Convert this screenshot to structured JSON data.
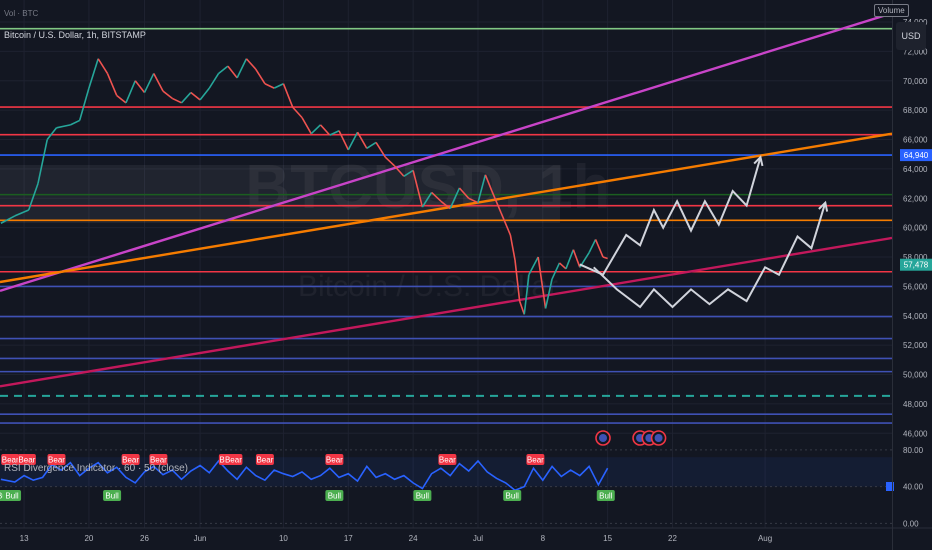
{
  "header": {
    "top_label": "Vol · BTC",
    "symbol": "Bitcoin / U.S. Dollar, 1h, BITSTAMP",
    "volume_button": "Volume",
    "currency_button": "USD"
  },
  "watermark": {
    "symbol": "BTCUSD, 1h",
    "name": "Bitcoin / U.S. Dollar"
  },
  "chart_data": [
    {
      "type": "line",
      "role": "price",
      "y_ticks": [
        74000,
        72000,
        70000,
        68000,
        66000,
        64000,
        62000,
        60000,
        58000,
        56000,
        54000,
        52000,
        50000,
        48000,
        46000
      ],
      "ylim": [
        45000,
        75500
      ],
      "x_ticks": [
        {
          "label": "13",
          "day": 13
        },
        {
          "label": "20",
          "day": 20
        },
        {
          "label": "26",
          "day": 26
        },
        {
          "label": "Jun",
          "day": 32
        },
        {
          "label": "10",
          "day": 41
        },
        {
          "label": "17",
          "day": 48
        },
        {
          "label": "24",
          "day": 55
        },
        {
          "label": "Jul",
          "day": 62
        },
        {
          "label": "8",
          "day": 69
        },
        {
          "label": "15",
          "day": 76
        },
        {
          "label": "22",
          "day": 83
        },
        {
          "label": "Aug",
          "day": 93
        }
      ],
      "xlim": [
        10.4,
        106.7
      ],
      "price_series": [
        [
          10.5,
          60300
        ],
        [
          12,
          60800
        ],
        [
          13.5,
          61200
        ],
        [
          14.5,
          63000
        ],
        [
          15.5,
          66000
        ],
        [
          16.5,
          66800
        ],
        [
          18,
          67000
        ],
        [
          19,
          67300
        ],
        [
          20,
          69500
        ],
        [
          21,
          71500
        ],
        [
          22,
          70500
        ],
        [
          23,
          69000
        ],
        [
          24,
          68500
        ],
        [
          25,
          70000
        ],
        [
          26,
          69200
        ],
        [
          27,
          70500
        ],
        [
          28,
          69300
        ],
        [
          29,
          68800
        ],
        [
          30,
          68500
        ],
        [
          31,
          69200
        ],
        [
          32,
          68700
        ],
        [
          33,
          69500
        ],
        [
          34,
          70500
        ],
        [
          35,
          71000
        ],
        [
          36,
          70200
        ],
        [
          37,
          71500
        ],
        [
          38,
          70800
        ],
        [
          39,
          69800
        ],
        [
          40,
          69500
        ],
        [
          41,
          69800
        ],
        [
          42,
          68200
        ],
        [
          43,
          67500
        ],
        [
          44,
          66400
        ],
        [
          45,
          67000
        ],
        [
          46,
          66300
        ],
        [
          47,
          66600
        ],
        [
          48,
          65300
        ],
        [
          49,
          66500
        ],
        [
          50,
          65400
        ],
        [
          51,
          65800
        ],
        [
          52,
          64800
        ],
        [
          53,
          64200
        ],
        [
          54,
          63500
        ],
        [
          55,
          63900
        ],
        [
          56,
          61400
        ],
        [
          57,
          62400
        ],
        [
          58,
          61800
        ],
        [
          59,
          61300
        ],
        [
          60,
          62700
        ],
        [
          61,
          62000
        ],
        [
          62,
          61700
        ],
        [
          62.8,
          63600
        ],
        [
          63.5,
          62500
        ],
        [
          64.5,
          61000
        ],
        [
          65.5,
          59500
        ],
        [
          66,
          57800
        ],
        [
          66.5,
          55000
        ],
        [
          67,
          54100
        ],
        [
          67.5,
          56800
        ],
        [
          68.5,
          58000
        ],
        [
          69.3,
          54500
        ],
        [
          70,
          56500
        ],
        [
          70.8,
          57600
        ],
        [
          71.5,
          57200
        ],
        [
          72.3,
          58500
        ],
        [
          73,
          57300
        ],
        [
          74,
          58300
        ],
        [
          74.7,
          59200
        ],
        [
          75.5,
          58000
        ],
        [
          76,
          57900
        ]
      ],
      "current_price_label": "57,478",
      "current_price": 57478,
      "level_label": "64,940",
      "level": 64940,
      "horizontal_levels": [
        {
          "price": 73550,
          "color": "#81c784"
        },
        {
          "price": 68210,
          "color": "#f23645"
        },
        {
          "price": 66330,
          "color": "#f23645"
        },
        {
          "price": 64940,
          "color": "#2962ff"
        },
        {
          "price": 62250,
          "color": "#1b5e20"
        },
        {
          "price": 61500,
          "color": "#f23645"
        },
        {
          "price": 60500,
          "color": "#f57c00"
        },
        {
          "price": 57000,
          "color": "#f23645"
        },
        {
          "price": 56000,
          "color": "#3f51b5"
        },
        {
          "price": 53950,
          "color": "#3f51b5"
        },
        {
          "price": 52450,
          "color": "#3f51b5"
        },
        {
          "price": 51100,
          "color": "#3f51b5"
        },
        {
          "price": 50200,
          "color": "#3f51b5"
        },
        {
          "price": 48550,
          "color": "#26a69a",
          "dashed": true
        },
        {
          "price": 47300,
          "color": "#3f51b5"
        },
        {
          "price": 46700,
          "color": "#3f51b5"
        }
      ],
      "trend_lines": [
        {
          "from": [
            10.4,
            55700
          ],
          "to": [
            106.7,
            74600
          ],
          "color": "#c844c8"
        },
        {
          "from": [
            10.4,
            56300
          ],
          "to": [
            106.7,
            66400
          ],
          "color": "#f57c00"
        },
        {
          "from": [
            10.4,
            49200
          ],
          "to": [
            106.7,
            59300
          ],
          "color": "#c2185b"
        }
      ],
      "projection_up": [
        [
          73,
          57500
        ],
        [
          75.5,
          56800
        ],
        [
          78,
          59500
        ],
        [
          79.5,
          58800
        ],
        [
          81,
          61200
        ],
        [
          82,
          60000
        ],
        [
          83.5,
          61800
        ],
        [
          85,
          59800
        ],
        [
          86.5,
          61800
        ],
        [
          88,
          60200
        ],
        [
          89.5,
          62500
        ],
        [
          91,
          61500
        ],
        [
          92.5,
          64800
        ]
      ],
      "projection_down": [
        [
          74.5,
          57300
        ],
        [
          77,
          55800
        ],
        [
          79.5,
          54600
        ],
        [
          81,
          55800
        ],
        [
          83,
          54600
        ],
        [
          85,
          55800
        ],
        [
          87,
          54800
        ],
        [
          89,
          55800
        ],
        [
          91,
          55000
        ],
        [
          93,
          57300
        ],
        [
          94.5,
          56800
        ],
        [
          96.5,
          59400
        ],
        [
          98,
          58600
        ],
        [
          99.5,
          61700
        ]
      ]
    },
    {
      "type": "line",
      "role": "rsi-indicator",
      "title": "RSI Divergence Indicator · 60 · 50 (close)",
      "y_ticks": [
        80,
        40,
        0
      ],
      "y_tick_labels": [
        "80.00",
        "40.00",
        "0.00"
      ],
      "ylim": [
        -5,
        82
      ],
      "band": [
        40,
        72
      ],
      "rsi_series": [
        [
          10.5,
          48
        ],
        [
          12,
          45
        ],
        [
          13,
          52
        ],
        [
          14,
          47
        ],
        [
          15,
          50
        ],
        [
          16,
          64
        ],
        [
          17,
          58
        ],
        [
          18,
          66
        ],
        [
          19,
          52
        ],
        [
          20,
          60
        ],
        [
          21,
          66
        ],
        [
          22,
          55
        ],
        [
          23,
          61
        ],
        [
          24,
          50
        ],
        [
          25,
          44
        ],
        [
          26,
          56
        ],
        [
          27,
          62
        ],
        [
          28,
          53
        ],
        [
          29,
          58
        ],
        [
          30,
          48
        ],
        [
          31,
          57
        ],
        [
          32,
          63
        ],
        [
          33,
          55
        ],
        [
          34,
          68
        ],
        [
          35,
          57
        ],
        [
          36,
          48
        ],
        [
          37,
          61
        ],
        [
          38,
          52
        ],
        [
          39,
          47
        ],
        [
          40,
          58
        ],
        [
          41,
          54
        ],
        [
          42,
          51
        ],
        [
          43,
          56
        ],
        [
          44,
          48
        ],
        [
          45,
          52
        ],
        [
          46,
          60
        ],
        [
          47,
          50
        ],
        [
          48,
          54
        ],
        [
          49,
          46
        ],
        [
          50,
          62
        ],
        [
          51,
          50
        ],
        [
          52,
          54
        ],
        [
          53,
          48
        ],
        [
          54,
          52
        ],
        [
          55,
          44
        ],
        [
          56,
          38
        ],
        [
          57,
          54
        ],
        [
          58,
          60
        ],
        [
          59,
          52
        ],
        [
          60,
          65
        ],
        [
          61,
          57
        ],
        [
          62,
          68
        ],
        [
          63,
          56
        ],
        [
          64,
          49
        ],
        [
          65,
          44
        ],
        [
          66,
          36
        ],
        [
          67,
          40
        ],
        [
          68,
          60
        ],
        [
          69,
          47
        ],
        [
          70,
          62
        ],
        [
          71,
          51
        ],
        [
          72,
          58
        ],
        [
          73,
          52
        ],
        [
          74,
          62
        ],
        [
          75,
          42
        ],
        [
          76,
          60
        ]
      ],
      "signals": [
        {
          "label": "Bear",
          "day": 11.5,
          "kind": "bear"
        },
        {
          "label": "Bear",
          "day": 13.3,
          "kind": "bear"
        },
        {
          "label": "Bear",
          "day": 16.5,
          "kind": "bear"
        },
        {
          "label": "Bear",
          "day": 24.5,
          "kind": "bear"
        },
        {
          "label": "Bear",
          "day": 27.5,
          "kind": "bear"
        },
        {
          "label": "Bear",
          "day": 35,
          "kind": "bear"
        },
        {
          "label": "Bear",
          "day": 35.6,
          "kind": "bear"
        },
        {
          "label": "Bear",
          "day": 39,
          "kind": "bear"
        },
        {
          "label": "Bear",
          "day": 46.5,
          "kind": "bear"
        },
        {
          "label": "Bear",
          "day": 58.7,
          "kind": "bear"
        },
        {
          "label": "Bear",
          "day": 68.2,
          "kind": "bear"
        },
        {
          "label": "Bull",
          "day": 10.8,
          "kind": "bull"
        },
        {
          "label": "Bull",
          "day": 11.7,
          "kind": "bull"
        },
        {
          "label": "Bull",
          "day": 22.5,
          "kind": "bull"
        },
        {
          "label": "Bull",
          "day": 46.5,
          "kind": "bull"
        },
        {
          "label": "Bull",
          "day": 56,
          "kind": "bull"
        },
        {
          "label": "Bull",
          "day": 65.7,
          "kind": "bull"
        },
        {
          "label": "Bull",
          "day": 75.8,
          "kind": "bull"
        }
      ],
      "events": [
        75.5,
        79.5,
        80.5,
        81.5
      ]
    }
  ]
}
